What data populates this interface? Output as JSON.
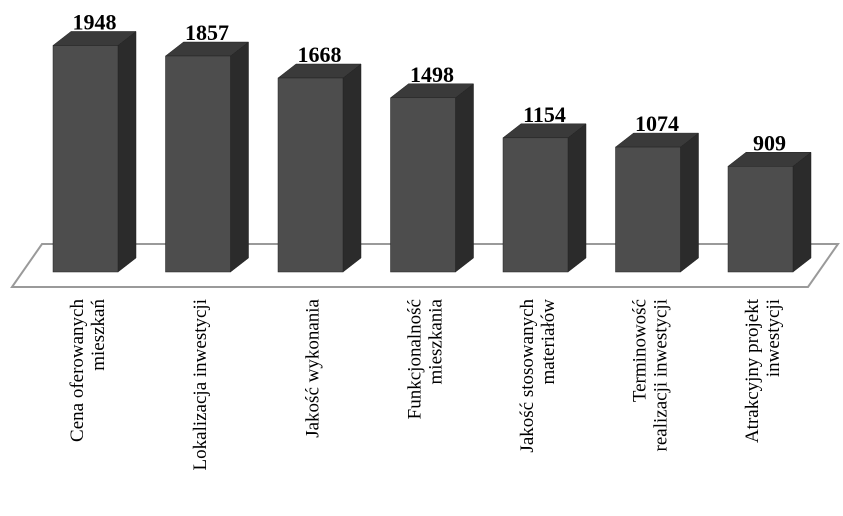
{
  "chart_data": {
    "type": "bar",
    "categories": [
      [
        "Cena oferowanych",
        "mieszkań"
      ],
      [
        "Lokalizacja inwestycji"
      ],
      [
        "Jakość wykonania"
      ],
      [
        "Funkcjonalność",
        "mieszkania"
      ],
      [
        "Jakość stosowanych",
        "materiałów"
      ],
      [
        "Terminowość",
        "realizacji inwestycji"
      ],
      [
        "Atrakcyjny projekt",
        "inwestycji"
      ]
    ],
    "values": [
      1948,
      1857,
      1668,
      1498,
      1154,
      1074,
      909
    ],
    "value_labels": [
      "1948",
      "1857",
      "1668",
      "1498",
      "1154",
      "1074",
      "909"
    ],
    "grid": false,
    "three_d": true,
    "colors": {
      "bar_front": "#4d4d4d",
      "bar_side": "#2b2b2b",
      "bar_top": "#3a3a3a",
      "floor_stroke": "#9a9a9a",
      "outline": "#222222"
    }
  }
}
